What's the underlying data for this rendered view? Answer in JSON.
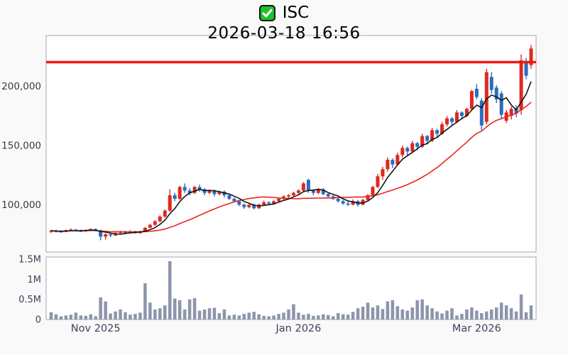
{
  "header": {
    "symbol": "ISC",
    "datetime": "2026-03-18 16:56",
    "checkbox_icon": "green-checked-checkbox"
  },
  "colors": {
    "background": "#f9f9fa",
    "panel_fill": "#ffffff",
    "panel_border": "#a8a8a8",
    "up_candle": "#dd2a1f",
    "down_candle": "#2c6cbe",
    "volume_bar": "#8d95ac",
    "ma_short": "#141414",
    "ma_long": "#e8271e",
    "reference_line": "#f2180f",
    "price_label": "#3b3b3b",
    "axis_label": "#3c4358",
    "check_green": "#1ec32b"
  },
  "chart_data": {
    "type": "candlestick",
    "title": "ISC",
    "subtitle": "2026-03-18 16:56",
    "legend_position": "none",
    "grid": false,
    "price_axis": {
      "range": [
        60000,
        243000
      ],
      "ticks": [
        {
          "value": 200000,
          "label": "200,000"
        },
        {
          "value": 150000,
          "label": "150,000"
        },
        {
          "value": 100000,
          "label": "100,000"
        }
      ]
    },
    "volume_axis": {
      "range": [
        0,
        1553000
      ],
      "ticks": [
        {
          "value": 1500000,
          "label": "1.5M"
        },
        {
          "value": 1000000,
          "label": "1M"
        },
        {
          "value": 500000,
          "label": "0.5M"
        },
        {
          "value": 0,
          "label": "0"
        }
      ]
    },
    "x_ticks": [
      {
        "index": 9,
        "label": "Nov 2025"
      },
      {
        "index": 50,
        "label": "Jan 2026"
      },
      {
        "index": 86,
        "label": "Mar 2026"
      }
    ],
    "reference_line": {
      "price": 220500
    },
    "moving_averages": [
      {
        "name": "MA5",
        "period": 5
      },
      {
        "name": "MA20",
        "period": 20
      }
    ],
    "candles": [
      [
        77000,
        79000,
        76000,
        78000
      ],
      [
        78000,
        79000,
        76500,
        77500
      ],
      [
        77500,
        78500,
        76500,
        77000
      ],
      [
        77000,
        79000,
        76800,
        78500
      ],
      [
        78500,
        80000,
        78000,
        79000
      ],
      [
        79000,
        79500,
        77500,
        78000
      ],
      [
        78000,
        79000,
        77000,
        77500
      ],
      [
        77500,
        79000,
        77000,
        78500
      ],
      [
        78500,
        80000,
        78000,
        79500
      ],
      [
        79500,
        80000,
        77500,
        78500
      ],
      [
        78500,
        79000,
        70000,
        73000
      ],
      [
        73000,
        76000,
        70500,
        75000
      ],
      [
        75000,
        76000,
        72500,
        74000
      ],
      [
        74000,
        77000,
        73500,
        76000
      ],
      [
        76000,
        78000,
        75500,
        77000
      ],
      [
        77000,
        78000,
        75800,
        76500
      ],
      [
        76500,
        78500,
        76000,
        77500
      ],
      [
        77500,
        78000,
        75500,
        76000
      ],
      [
        76000,
        78000,
        75500,
        77500
      ],
      [
        77500,
        81000,
        77000,
        80500
      ],
      [
        80500,
        84000,
        80000,
        83000
      ],
      [
        83000,
        87000,
        82000,
        86000
      ],
      [
        86000,
        91000,
        85000,
        90000
      ],
      [
        90000,
        96000,
        89000,
        95000
      ],
      [
        95000,
        113000,
        94000,
        108000
      ],
      [
        108000,
        110000,
        103000,
        105000
      ],
      [
        105000,
        116000,
        104000,
        115000
      ],
      [
        115000,
        118000,
        110000,
        112000
      ],
      [
        112000,
        114000,
        108000,
        110000
      ],
      [
        110000,
        116000,
        109000,
        115000
      ],
      [
        115000,
        117000,
        111000,
        113000
      ],
      [
        113000,
        114000,
        108000,
        110000
      ],
      [
        110000,
        113000,
        109000,
        112000
      ],
      [
        112000,
        113000,
        107000,
        109000
      ],
      [
        109000,
        112000,
        108000,
        111000
      ],
      [
        111000,
        112000,
        106000,
        108000
      ],
      [
        108000,
        109000,
        104000,
        105000
      ],
      [
        105000,
        106000,
        102000,
        103000
      ],
      [
        103000,
        104000,
        99000,
        100000
      ],
      [
        100000,
        101000,
        96500,
        98000
      ],
      [
        98000,
        100500,
        97000,
        100000
      ],
      [
        100000,
        101000,
        96000,
        97000
      ],
      [
        97000,
        101000,
        96500,
        100000
      ],
      [
        100000,
        103500,
        99000,
        102000
      ],
      [
        102000,
        103000,
        99500,
        101000
      ],
      [
        101000,
        104000,
        100000,
        103000
      ],
      [
        103000,
        106000,
        102000,
        105000
      ],
      [
        105000,
        108000,
        104000,
        107000
      ],
      [
        107000,
        109000,
        105000,
        108000
      ],
      [
        108000,
        111000,
        107000,
        110000
      ],
      [
        110000,
        113000,
        109000,
        112000
      ],
      [
        112000,
        119000,
        111000,
        118000
      ],
      [
        121000,
        122000,
        110000,
        112000
      ],
      [
        112000,
        113000,
        108000,
        110000
      ],
      [
        110000,
        114000,
        109000,
        113000
      ],
      [
        113000,
        114000,
        108000,
        109000
      ],
      [
        109000,
        110000,
        106000,
        107000
      ],
      [
        107000,
        108000,
        104000,
        105000
      ],
      [
        105000,
        106000,
        102000,
        103000
      ],
      [
        103000,
        104000,
        100000,
        101000
      ],
      [
        101000,
        103000,
        99000,
        100000
      ],
      [
        100000,
        104500,
        99500,
        103000
      ],
      [
        103000,
        104000,
        98500,
        100000
      ],
      [
        100000,
        105000,
        99500,
        104000
      ],
      [
        104000,
        109000,
        103000,
        108000
      ],
      [
        108000,
        116000,
        107000,
        115000
      ],
      [
        115000,
        126000,
        114000,
        124000
      ],
      [
        124000,
        132000,
        121000,
        130000
      ],
      [
        130000,
        140000,
        128000,
        138000
      ],
      [
        138000,
        139000,
        131000,
        134000
      ],
      [
        134000,
        144000,
        133000,
        142000
      ],
      [
        142000,
        150000,
        140000,
        148000
      ],
      [
        148000,
        149000,
        141000,
        145000
      ],
      [
        145000,
        154000,
        144000,
        152000
      ],
      [
        152000,
        153000,
        146000,
        149000
      ],
      [
        149000,
        160000,
        148000,
        158000
      ],
      [
        158000,
        159000,
        151000,
        154000
      ],
      [
        154000,
        165000,
        153000,
        163000
      ],
      [
        163000,
        164000,
        157000,
        160000
      ],
      [
        160000,
        170000,
        159000,
        168000
      ],
      [
        168000,
        175000,
        166000,
        173000
      ],
      [
        173000,
        174000,
        167000,
        170000
      ],
      [
        170000,
        180000,
        169000,
        178000
      ],
      [
        178000,
        179000,
        172000,
        175000
      ],
      [
        175000,
        182000,
        174000,
        181000
      ],
      [
        181000,
        197000,
        180000,
        196000
      ],
      [
        198000,
        202000,
        189000,
        191000
      ],
      [
        188000,
        190000,
        163000,
        167000
      ],
      [
        170000,
        215000,
        168000,
        212000
      ],
      [
        208000,
        212000,
        194000,
        197000
      ],
      [
        199000,
        201000,
        186000,
        189000
      ],
      [
        194000,
        196000,
        173000,
        176000
      ],
      [
        171000,
        180000,
        169000,
        178000
      ],
      [
        175000,
        183000,
        172000,
        181000
      ],
      [
        181000,
        184000,
        174000,
        177000
      ],
      [
        180000,
        227000,
        176000,
        222000
      ],
      [
        220000,
        224000,
        206000,
        209000
      ],
      [
        218000,
        235000,
        215000,
        232000
      ]
    ],
    "volumes": [
      180000,
      130000,
      80000,
      100000,
      120000,
      170000,
      100000,
      90000,
      130000,
      80000,
      550000,
      450000,
      150000,
      200000,
      250000,
      180000,
      120000,
      140000,
      170000,
      900000,
      420000,
      250000,
      280000,
      350000,
      1450000,
      520000,
      480000,
      250000,
      500000,
      530000,
      220000,
      250000,
      280000,
      290000,
      160000,
      250000,
      100000,
      120000,
      100000,
      140000,
      170000,
      190000,
      130000,
      90000,
      80000,
      100000,
      140000,
      170000,
      250000,
      380000,
      170000,
      120000,
      140000,
      90000,
      100000,
      130000,
      110000,
      80000,
      160000,
      130000,
      120000,
      190000,
      280000,
      320000,
      420000,
      300000,
      350000,
      260000,
      450000,
      480000,
      330000,
      250000,
      220000,
      300000,
      480000,
      500000,
      350000,
      280000,
      200000,
      150000,
      220000,
      280000,
      100000,
      140000,
      250000,
      300000,
      220000,
      160000,
      200000,
      250000,
      300000,
      420000,
      350000,
      280000,
      200000,
      620000,
      180000,
      350000
    ]
  }
}
